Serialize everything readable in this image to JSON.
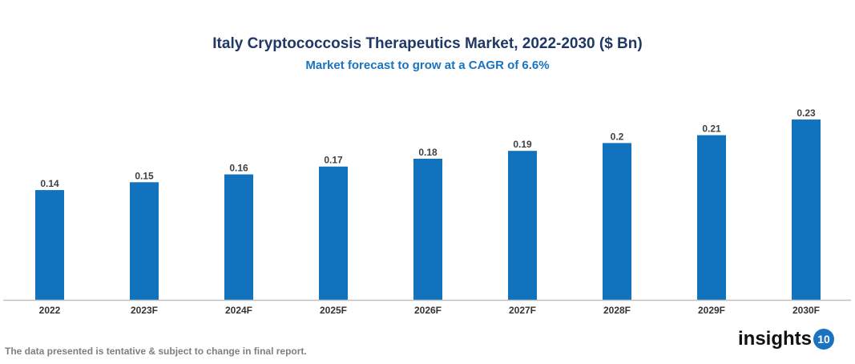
{
  "chart_data": {
    "type": "bar",
    "title": "Italy Cryptococcosis Therapeutics Market, 2022-2030 ($ Bn)",
    "subtitle": "Market forecast to grow at a CAGR of 6.6%",
    "categories": [
      "2022",
      "2023F",
      "2024F",
      "2025F",
      "2026F",
      "2027F",
      "2028F",
      "2029F",
      "2030F"
    ],
    "values": [
      0.14,
      0.15,
      0.16,
      0.17,
      0.18,
      0.19,
      0.2,
      0.21,
      0.23
    ],
    "value_labels": [
      "0.14",
      "0.15",
      "0.16",
      "0.17",
      "0.18",
      "0.19",
      "0.2",
      "0.21",
      "0.23"
    ],
    "xlabel": "",
    "ylabel": "",
    "ylim": [
      0,
      0.23
    ],
    "grid": false,
    "bar_color": "#1172bd"
  },
  "footer": {
    "note": "The data presented is tentative & subject to change in final report."
  },
  "logo": {
    "text": "insights",
    "badge": "10"
  }
}
